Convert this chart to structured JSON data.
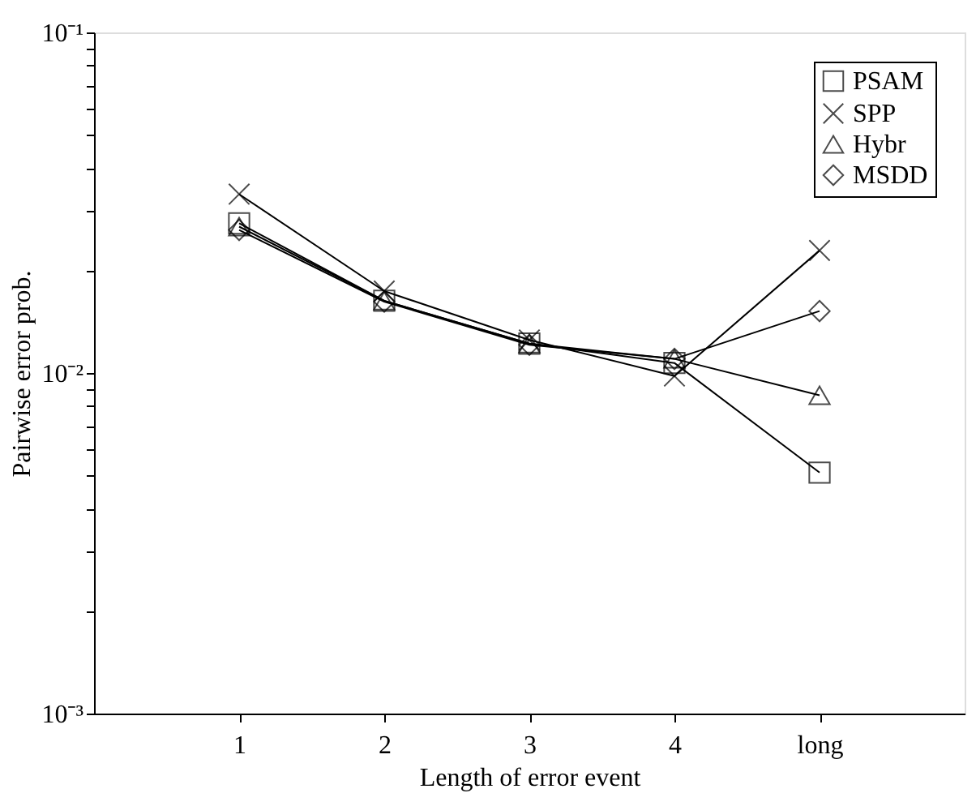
{
  "chart_data": {
    "type": "line",
    "xlabel": "Length of error event",
    "ylabel": "Pairwise error prob.",
    "x": [
      1,
      2,
      3,
      4,
      5
    ],
    "xlim": [
      0,
      6
    ],
    "xticks": [
      1,
      2,
      3,
      4,
      {
        "value": 5,
        "label": "long"
      }
    ],
    "ylim": [
      0.001,
      0.1
    ],
    "log": true,
    "yticks": [
      {
        "value": 0.001,
        "label": "10⁻³"
      },
      {
        "value": 0.002,
        "label": null
      },
      {
        "value": 0.003,
        "label": null
      },
      {
        "value": 0.004,
        "label": null
      },
      {
        "value": 0.005,
        "label": null
      },
      {
        "value": 0.006,
        "label": null
      },
      {
        "value": 0.007,
        "label": null
      },
      {
        "value": 0.008,
        "label": null
      },
      {
        "value": 0.009,
        "label": null
      },
      {
        "value": 0.01,
        "label": "10⁻²"
      },
      {
        "value": 0.02,
        "label": null
      },
      {
        "value": 0.03,
        "label": null
      },
      {
        "value": 0.04,
        "label": null
      },
      {
        "value": 0.05,
        "label": null
      },
      {
        "value": 0.06,
        "label": null
      },
      {
        "value": 0.07,
        "label": null
      },
      {
        "value": 0.08,
        "label": null
      },
      {
        "value": 0.09,
        "label": null
      },
      {
        "value": 0.1,
        "label": "10⁻¹"
      }
    ],
    "grid": false,
    "legend": "top right",
    "line_style": "solid",
    "series": [
      {
        "name": "PSAM",
        "color": "#000000",
        "marker": "square",
        "values": [
          0.0275,
          0.0163,
          0.0122,
          0.0107,
          0.0051
        ]
      },
      {
        "name": "SPP",
        "color": "#000000",
        "marker": "cross",
        "values": [
          0.0335,
          0.0174,
          0.0125,
          0.0098,
          0.0229
        ]
      },
      {
        "name": "Hybr",
        "color": "#000000",
        "marker": "triangle",
        "values": [
          0.0269,
          0.0163,
          0.0122,
          0.011,
          0.0086
        ]
      },
      {
        "name": "MSDD",
        "color": "#000000",
        "marker": "diamond",
        "values": [
          0.0263,
          0.0162,
          0.0121,
          0.011,
          0.0152
        ]
      }
    ]
  }
}
